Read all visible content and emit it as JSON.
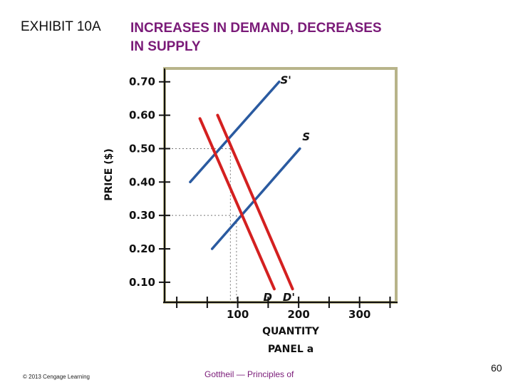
{
  "slide": {
    "exhibit": "EXHIBIT 10A",
    "title_line1": "INCREASES IN DEMAND, DECREASES",
    "title_line2": "IN SUPPLY",
    "copyright": "© 2013 Cengage Learning",
    "footer": "Gottheil — Principles of",
    "page_number": "60"
  },
  "colors": {
    "title": "#7a1a78",
    "supply": "#2a5aa0",
    "demand": "#d42020",
    "frame": "#b8b48a"
  },
  "chart_data": {
    "type": "line",
    "title": "PANEL a",
    "xlabel": "QUANTITY",
    "ylabel": "PRICE ($)",
    "xlim": [
      -20,
      360
    ],
    "ylim": [
      0.04,
      0.74
    ],
    "x_ticks": [
      0,
      50,
      100,
      150,
      200,
      250,
      300,
      350
    ],
    "x_tick_labels": [
      {
        "value": 100,
        "label": "100"
      },
      {
        "value": 200,
        "label": "200"
      },
      {
        "value": 300,
        "label": "300"
      }
    ],
    "y_ticks": [
      {
        "value": 0.7,
        "label": "0.70"
      },
      {
        "value": 0.6,
        "label": "0.60"
      },
      {
        "value": 0.5,
        "label": "0.50"
      },
      {
        "value": 0.4,
        "label": "0.40"
      },
      {
        "value": 0.3,
        "label": "0.30"
      },
      {
        "value": 0.2,
        "label": "0.20"
      },
      {
        "value": 0.1,
        "label": "0.10"
      }
    ],
    "series": [
      {
        "name": "S'",
        "kind": "supply",
        "points": [
          [
            22,
            0.4
          ],
          [
            168,
            0.7
          ]
        ]
      },
      {
        "name": "S",
        "kind": "supply",
        "points": [
          [
            58,
            0.2
          ],
          [
            202,
            0.5
          ]
        ]
      },
      {
        "name": "D",
        "kind": "demand",
        "points": [
          [
            38,
            0.59
          ],
          [
            160,
            0.08
          ]
        ]
      },
      {
        "name": "D'",
        "kind": "demand",
        "points": [
          [
            67,
            0.6
          ],
          [
            190,
            0.08
          ]
        ]
      }
    ],
    "label_positions": {
      "S'": [
        170,
        0.705
      ],
      "S": [
        206,
        0.535
      ],
      "D": [
        142,
        0.055
      ],
      "D'": [
        174,
        0.055
      ]
    },
    "equilibria": [
      {
        "x": 98,
        "y": 0.3
      },
      {
        "x": 88,
        "y": 0.5
      }
    ],
    "grid": false,
    "legend": "none"
  }
}
